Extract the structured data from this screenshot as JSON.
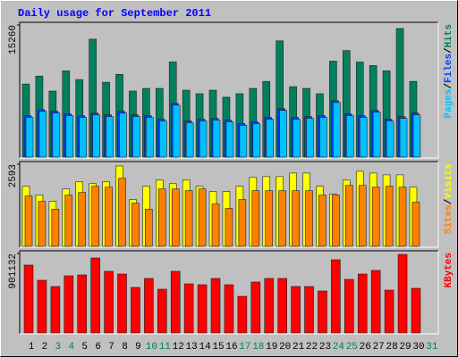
{
  "title": "Daily usage for September 2011",
  "categories": [
    "1",
    "2",
    "3",
    "4",
    "5",
    "6",
    "7",
    "8",
    "9",
    "10",
    "11",
    "12",
    "13",
    "14",
    "15",
    "16",
    "17",
    "18",
    "19",
    "20",
    "21",
    "22",
    "23",
    "24",
    "25",
    "26",
    "27",
    "28",
    "29",
    "30",
    "31"
  ],
  "category_colors": [
    "#000000",
    "#000000",
    "#00805c",
    "#00805c",
    "#000000",
    "#000000",
    "#000000",
    "#000000",
    "#000000",
    "#00805c",
    "#00805c",
    "#000000",
    "#000000",
    "#000000",
    "#000000",
    "#000000",
    "#00805c",
    "#00805c",
    "#000000",
    "#000000",
    "#000000",
    "#000000",
    "#000000",
    "#00805c",
    "#00805c",
    "#000000",
    "#000000",
    "#000000",
    "#000000",
    "#000000",
    "#00805c"
  ],
  "legend_separator": "/",
  "chart_data": [
    {
      "type": "bar",
      "ylim": [
        0,
        15260
      ],
      "yticks": [
        15260
      ],
      "series": [
        {
          "name": "Hits",
          "color": "#00805c",
          "values": [
            8441,
            9357,
            7628,
            9967,
            8950,
            13628,
            8645,
            9560,
            7628,
            7933,
            7933,
            10984,
            7729,
            7322,
            7729,
            6916,
            7322,
            7933,
            8746,
            13424,
            8136,
            7933,
            7322,
            11085,
            12306,
            10984,
            10577,
            9967,
            14848,
            8746,
            null
          ]
        },
        {
          "name": "Files",
          "color": "#0040ff",
          "values": [
            4780,
            5490,
            5290,
            4985,
            4780,
            5085,
            4880,
            5290,
            4880,
            4780,
            4375,
            6205,
            4170,
            4375,
            4475,
            4270,
            3865,
            4070,
            4575,
            5595,
            4575,
            4680,
            4780,
            6510,
            4985,
            4780,
            5390,
            4375,
            4680,
            5085,
            null
          ]
        },
        {
          "name": "Pages",
          "color": "#00c0ff",
          "values": [
            4577,
            5288,
            5085,
            4780,
            4577,
            4882,
            4678,
            5085,
            4678,
            4577,
            4170,
            6000,
            3966,
            4170,
            4271,
            4068,
            3661,
            3865,
            4373,
            5390,
            4373,
            4475,
            4577,
            6305,
            4780,
            4577,
            5187,
            4170,
            4475,
            4882,
            null
          ]
        }
      ]
    },
    {
      "type": "bar",
      "ylim": [
        0,
        2593
      ],
      "yticks": [
        2593
      ],
      "series": [
        {
          "name": "Visits",
          "color": "#ffff00",
          "values": [
            1896,
            1617,
            1422,
            1812,
            2035,
            1979,
            2035,
            2537,
            1478,
            1896,
            2091,
            1979,
            2091,
            1896,
            1729,
            1729,
            1896,
            2175,
            2203,
            2203,
            2314,
            2314,
            1896,
            1645,
            2091,
            2370,
            2314,
            2258,
            2258,
            1868,
            null
          ]
        },
        {
          "name": "Sites",
          "color": "#ff8000",
          "values": [
            1589,
            1422,
            1171,
            1617,
            1701,
            1896,
            1868,
            2147,
            1366,
            1171,
            1812,
            1812,
            1756,
            1812,
            1338,
            1199,
            1478,
            1756,
            1756,
            1756,
            1756,
            1756,
            1617,
            1617,
            1924,
            1924,
            1868,
            1896,
            1868,
            1394,
            null
          ]
        }
      ]
    },
    {
      "type": "bar",
      "ylim": [
        0,
        901132
      ],
      "yticks": [
        901132
      ],
      "series": [
        {
          "name": "KBytes",
          "color": "#ff0000",
          "values": [
            769500,
            597375,
            526500,
            648000,
            658125,
            850500,
            698625,
            668250,
            516375,
            617625,
            496125,
            698625,
            556875,
            546750,
            617625,
            546750,
            415125,
            577125,
            617625,
            617625,
            526500,
            526500,
            475875,
            830250,
            607500,
            668250,
            708750,
            486000,
            891000,
            506250,
            null
          ]
        }
      ]
    }
  ]
}
